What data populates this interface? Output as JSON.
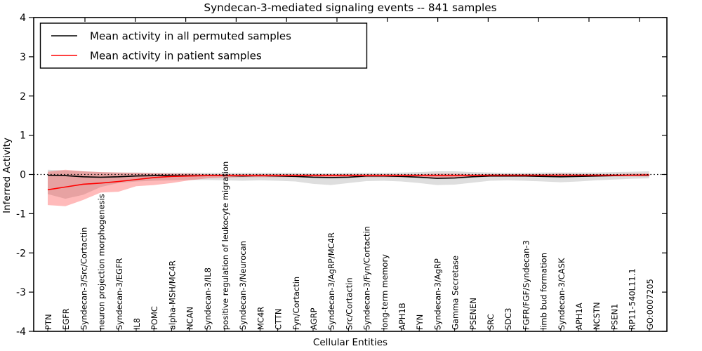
{
  "chart_data": {
    "type": "line",
    "title": "Syndecan-3-mediated signaling events -- 841 samples",
    "xlabel": "Cellular Entities",
    "ylabel": "Inferred Activity",
    "ylim": [
      -4,
      4
    ],
    "yticks": [
      "4",
      "3",
      "2",
      "1",
      "0",
      "-1",
      "-2",
      "-3",
      "-4"
    ],
    "grid": false,
    "legend_position": "upper left",
    "zero_reference_line": 0,
    "categories": [
      "PTN",
      "EGFR",
      "Syndecan-3/Src/Cortactin",
      "neuron projection morphogenesis",
      "Syndecan-3/EGFR",
      "IL8",
      "POMC",
      "alpha-MSH/MC4R",
      "NCAN",
      "Syndecan-3/IL8",
      "positive regulation of leukocyte migration",
      "Syndecan-3/Neurocan",
      "MC4R",
      "CTTN",
      "Fyn/Cortactin",
      "AGRP",
      "Syndecan-3/AgRP/MC4R",
      "Src/Cortactin",
      "Syndecan-3/Fyn/Cortactin",
      "long-term memory",
      "APH1B",
      "FYN",
      "Syndecan-3/AgRP",
      "Gamma Secretase",
      "PSENEN",
      "SRC",
      "SDC3",
      "FGFR/FGF/Syndecan-3",
      "limb bud formation",
      "Syndecan-3/CASK",
      "APH1A",
      "NCSTN",
      "PSEN1",
      "RP11-540L11.1",
      "GO:0007205"
    ],
    "series": [
      {
        "name": "Mean activity in all permuted samples",
        "color": "#000000",
        "band_color": "rgba(0,0,0,0.13)",
        "values": [
          -0.02,
          -0.03,
          -0.06,
          -0.07,
          -0.06,
          -0.04,
          -0.03,
          -0.03,
          -0.03,
          -0.03,
          -0.03,
          -0.04,
          -0.03,
          -0.04,
          -0.05,
          -0.07,
          -0.08,
          -0.07,
          -0.04,
          -0.04,
          -0.05,
          -0.07,
          -0.1,
          -0.09,
          -0.06,
          -0.04,
          -0.04,
          -0.04,
          -0.05,
          -0.06,
          -0.05,
          -0.04,
          -0.03,
          -0.02,
          -0.02
        ],
        "band_upper": [
          0.12,
          0.1,
          0.08,
          0.06,
          0.05,
          0.05,
          0.04,
          0.04,
          0.04,
          0.04,
          0.04,
          0.04,
          0.04,
          0.04,
          0.04,
          0.03,
          0.03,
          0.04,
          0.04,
          0.04,
          0.05,
          0.06,
          0.08,
          0.08,
          0.06,
          0.05,
          0.04,
          0.04,
          0.05,
          0.05,
          0.05,
          0.05,
          0.06,
          0.07,
          0.08
        ],
        "band_lower": [
          -0.5,
          -0.62,
          -0.52,
          -0.32,
          -0.22,
          -0.18,
          -0.16,
          -0.15,
          -0.14,
          -0.14,
          -0.15,
          -0.16,
          -0.15,
          -0.16,
          -0.18,
          -0.24,
          -0.27,
          -0.22,
          -0.17,
          -0.16,
          -0.18,
          -0.22,
          -0.27,
          -0.26,
          -0.21,
          -0.16,
          -0.15,
          -0.16,
          -0.18,
          -0.2,
          -0.18,
          -0.15,
          -0.13,
          -0.11,
          -0.1
        ]
      },
      {
        "name": "Mean activity in patient samples",
        "color": "#ff0000",
        "band_color": "rgba(255,0,0,0.27)",
        "values": [
          -0.39,
          -0.32,
          -0.25,
          -0.22,
          -0.18,
          -0.13,
          -0.08,
          -0.05,
          -0.04,
          -0.03,
          -0.03,
          -0.03,
          -0.03,
          -0.03,
          -0.03,
          -0.03,
          -0.03,
          -0.03,
          -0.03,
          -0.03,
          -0.03,
          -0.03,
          -0.03,
          -0.03,
          -0.03,
          -0.02,
          -0.02,
          -0.02,
          -0.02,
          -0.02,
          -0.02,
          -0.02,
          -0.02,
          -0.02,
          -0.01
        ],
        "band_upper": [
          0.07,
          0.12,
          0.08,
          0.06,
          0.05,
          0.04,
          0.03,
          0.02,
          0.02,
          0.01,
          0.01,
          0.01,
          0.01,
          0.01,
          0.01,
          0.01,
          0.01,
          0.01,
          0.01,
          0.01,
          0.01,
          0.01,
          0.02,
          0.02,
          0.01,
          0.01,
          0.01,
          0.01,
          0.01,
          0.02,
          0.01,
          0.01,
          0.01,
          0.02,
          0.02
        ],
        "band_lower": [
          -0.78,
          -0.81,
          -0.65,
          -0.46,
          -0.44,
          -0.3,
          -0.27,
          -0.22,
          -0.15,
          -0.1,
          -0.08,
          -0.07,
          -0.07,
          -0.07,
          -0.07,
          -0.08,
          -0.08,
          -0.08,
          -0.07,
          -0.07,
          -0.07,
          -0.08,
          -0.08,
          -0.08,
          -0.07,
          -0.06,
          -0.06,
          -0.06,
          -0.06,
          -0.07,
          -0.06,
          -0.06,
          -0.05,
          -0.05,
          -0.05
        ]
      }
    ]
  }
}
